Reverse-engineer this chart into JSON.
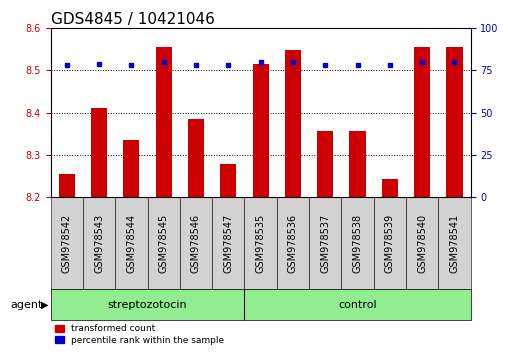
{
  "title": "GDS4845 / 10421046",
  "samples": [
    "GSM978542",
    "GSM978543",
    "GSM978544",
    "GSM978545",
    "GSM978546",
    "GSM978547",
    "GSM978535",
    "GSM978536",
    "GSM978537",
    "GSM978538",
    "GSM978539",
    "GSM978540",
    "GSM978541"
  ],
  "red_values": [
    8.255,
    8.41,
    8.335,
    8.555,
    8.385,
    8.278,
    8.515,
    8.548,
    8.357,
    8.357,
    8.243,
    8.555,
    8.555
  ],
  "blue_values": [
    78,
    79,
    78,
    80,
    78,
    78,
    80,
    80,
    78,
    78,
    78,
    80,
    80
  ],
  "group_splits": [
    6
  ],
  "group_labels": [
    "streptozotocin",
    "control"
  ],
  "group_label_name": "agent",
  "group_color": "#90EE90",
  "ylim_left": [
    8.2,
    8.6
  ],
  "ylim_right": [
    0,
    100
  ],
  "yticks_left": [
    8.2,
    8.3,
    8.4,
    8.5,
    8.6
  ],
  "yticks_right": [
    0,
    25,
    50,
    75,
    100
  ],
  "red_color": "#CC0000",
  "blue_color": "#0000CC",
  "bar_width": 0.5,
  "legend_red": "transformed count",
  "legend_blue": "percentile rank within the sample",
  "title_fontsize": 11,
  "tick_fontsize": 7,
  "label_fontsize": 8,
  "gray_bg": "#D3D3D3",
  "gridline_vals": [
    8.3,
    8.4,
    8.5
  ]
}
